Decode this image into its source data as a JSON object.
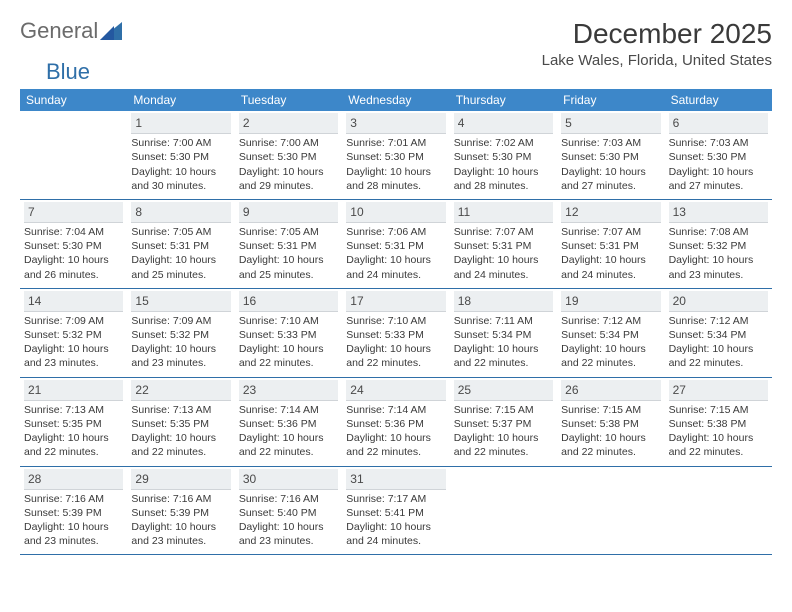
{
  "logo": {
    "text1": "General",
    "text2": "Blue"
  },
  "title": "December 2025",
  "location": "Lake Wales, Florida, United States",
  "weekday_labels": [
    "Sunday",
    "Monday",
    "Tuesday",
    "Wednesday",
    "Thursday",
    "Friday",
    "Saturday"
  ],
  "colors": {
    "header_bar": "#3d87c9",
    "header_text": "#ffffff",
    "daynum_bg": "#eceff1",
    "week_border": "#2f6fa8",
    "logo_gray": "#6b6b6b",
    "logo_blue": "#2f6fa8",
    "text": "#3a3a3a"
  },
  "typography": {
    "title_fontsize": 28,
    "location_fontsize": 15,
    "weekday_fontsize": 12,
    "daynum_fontsize": 12,
    "body_fontsize": 10.5
  },
  "layout": {
    "columns": 7,
    "rows": 5,
    "first_weekday_index": 1
  },
  "days": [
    {
      "n": 1,
      "sunrise": "7:00 AM",
      "sunset": "5:30 PM",
      "daylight": "10 hours and 30 minutes."
    },
    {
      "n": 2,
      "sunrise": "7:00 AM",
      "sunset": "5:30 PM",
      "daylight": "10 hours and 29 minutes."
    },
    {
      "n": 3,
      "sunrise": "7:01 AM",
      "sunset": "5:30 PM",
      "daylight": "10 hours and 28 minutes."
    },
    {
      "n": 4,
      "sunrise": "7:02 AM",
      "sunset": "5:30 PM",
      "daylight": "10 hours and 28 minutes."
    },
    {
      "n": 5,
      "sunrise": "7:03 AM",
      "sunset": "5:30 PM",
      "daylight": "10 hours and 27 minutes."
    },
    {
      "n": 6,
      "sunrise": "7:03 AM",
      "sunset": "5:30 PM",
      "daylight": "10 hours and 27 minutes."
    },
    {
      "n": 7,
      "sunrise": "7:04 AM",
      "sunset": "5:30 PM",
      "daylight": "10 hours and 26 minutes."
    },
    {
      "n": 8,
      "sunrise": "7:05 AM",
      "sunset": "5:31 PM",
      "daylight": "10 hours and 25 minutes."
    },
    {
      "n": 9,
      "sunrise": "7:05 AM",
      "sunset": "5:31 PM",
      "daylight": "10 hours and 25 minutes."
    },
    {
      "n": 10,
      "sunrise": "7:06 AM",
      "sunset": "5:31 PM",
      "daylight": "10 hours and 24 minutes."
    },
    {
      "n": 11,
      "sunrise": "7:07 AM",
      "sunset": "5:31 PM",
      "daylight": "10 hours and 24 minutes."
    },
    {
      "n": 12,
      "sunrise": "7:07 AM",
      "sunset": "5:31 PM",
      "daylight": "10 hours and 24 minutes."
    },
    {
      "n": 13,
      "sunrise": "7:08 AM",
      "sunset": "5:32 PM",
      "daylight": "10 hours and 23 minutes."
    },
    {
      "n": 14,
      "sunrise": "7:09 AM",
      "sunset": "5:32 PM",
      "daylight": "10 hours and 23 minutes."
    },
    {
      "n": 15,
      "sunrise": "7:09 AM",
      "sunset": "5:32 PM",
      "daylight": "10 hours and 23 minutes."
    },
    {
      "n": 16,
      "sunrise": "7:10 AM",
      "sunset": "5:33 PM",
      "daylight": "10 hours and 22 minutes."
    },
    {
      "n": 17,
      "sunrise": "7:10 AM",
      "sunset": "5:33 PM",
      "daylight": "10 hours and 22 minutes."
    },
    {
      "n": 18,
      "sunrise": "7:11 AM",
      "sunset": "5:34 PM",
      "daylight": "10 hours and 22 minutes."
    },
    {
      "n": 19,
      "sunrise": "7:12 AM",
      "sunset": "5:34 PM",
      "daylight": "10 hours and 22 minutes."
    },
    {
      "n": 20,
      "sunrise": "7:12 AM",
      "sunset": "5:34 PM",
      "daylight": "10 hours and 22 minutes."
    },
    {
      "n": 21,
      "sunrise": "7:13 AM",
      "sunset": "5:35 PM",
      "daylight": "10 hours and 22 minutes."
    },
    {
      "n": 22,
      "sunrise": "7:13 AM",
      "sunset": "5:35 PM",
      "daylight": "10 hours and 22 minutes."
    },
    {
      "n": 23,
      "sunrise": "7:14 AM",
      "sunset": "5:36 PM",
      "daylight": "10 hours and 22 minutes."
    },
    {
      "n": 24,
      "sunrise": "7:14 AM",
      "sunset": "5:36 PM",
      "daylight": "10 hours and 22 minutes."
    },
    {
      "n": 25,
      "sunrise": "7:15 AM",
      "sunset": "5:37 PM",
      "daylight": "10 hours and 22 minutes."
    },
    {
      "n": 26,
      "sunrise": "7:15 AM",
      "sunset": "5:38 PM",
      "daylight": "10 hours and 22 minutes."
    },
    {
      "n": 27,
      "sunrise": "7:15 AM",
      "sunset": "5:38 PM",
      "daylight": "10 hours and 22 minutes."
    },
    {
      "n": 28,
      "sunrise": "7:16 AM",
      "sunset": "5:39 PM",
      "daylight": "10 hours and 23 minutes."
    },
    {
      "n": 29,
      "sunrise": "7:16 AM",
      "sunset": "5:39 PM",
      "daylight": "10 hours and 23 minutes."
    },
    {
      "n": 30,
      "sunrise": "7:16 AM",
      "sunset": "5:40 PM",
      "daylight": "10 hours and 23 minutes."
    },
    {
      "n": 31,
      "sunrise": "7:17 AM",
      "sunset": "5:41 PM",
      "daylight": "10 hours and 24 minutes."
    }
  ],
  "labels": {
    "sunrise": "Sunrise:",
    "sunset": "Sunset:",
    "daylight": "Daylight:"
  }
}
